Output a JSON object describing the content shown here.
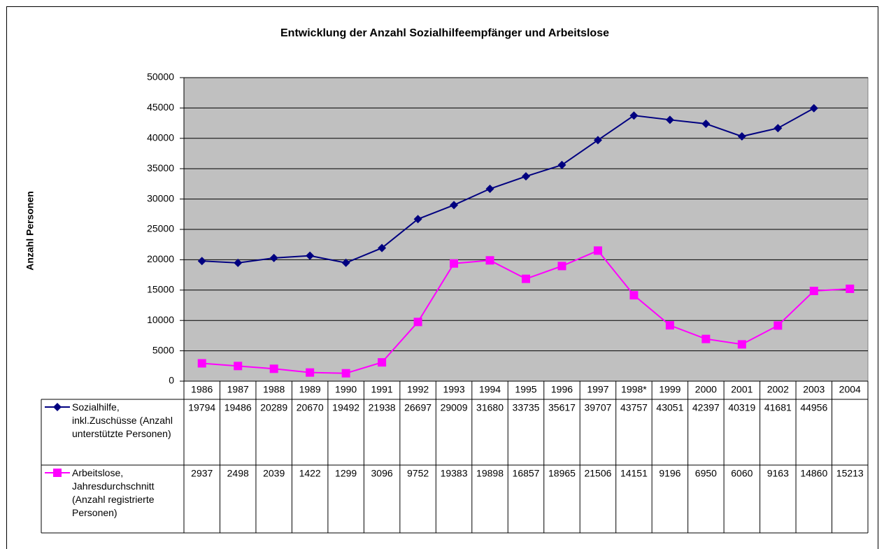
{
  "chart_data": {
    "type": "line",
    "title": "Entwicklung der Anzahl Sozialhilfeempfänger und Arbeitslose",
    "y_label": "Anzahl Personen",
    "categories": [
      "1986",
      "1987",
      "1988",
      "1989",
      "1990",
      "1991",
      "1992",
      "1993",
      "1994",
      "1995",
      "1996",
      "1997",
      "1998*",
      "1999",
      "2000",
      "2001",
      "2002",
      "2003",
      "2004"
    ],
    "series": [
      {
        "name": "Sozialhilfe, inkl.Zuschüsse (Anzahl unterstützte Personen)",
        "color": "#000080",
        "marker": "diamond",
        "values": [
          19794,
          19486,
          20289,
          20670,
          19492,
          21938,
          26697,
          29009,
          31680,
          33735,
          35617,
          39707,
          43757,
          43051,
          42397,
          40319,
          41681,
          44956,
          null
        ]
      },
      {
        "name": "Arbeitslose, Jahresdurchschnitt (Anzahl registrierte Personen)",
        "color": "#ff00ff",
        "marker": "square",
        "values": [
          2937,
          2498,
          2039,
          1422,
          1299,
          3096,
          9752,
          19383,
          19898,
          16857,
          18965,
          21506,
          14151,
          9196,
          6950,
          6060,
          9163,
          14860,
          15213
        ]
      }
    ],
    "ylim": [
      0,
      50000
    ],
    "yticks": [
      0,
      5000,
      10000,
      15000,
      20000,
      25000,
      30000,
      35000,
      40000,
      45000,
      50000
    ],
    "grid": true,
    "plot_background": "#c0c0c0"
  }
}
